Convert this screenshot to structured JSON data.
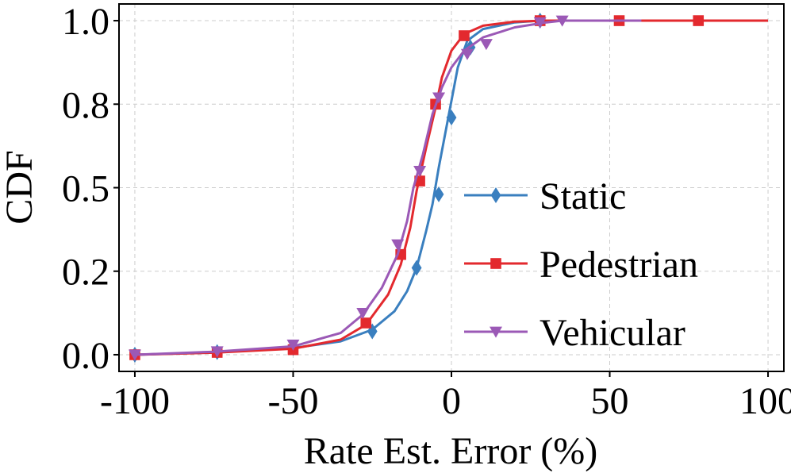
{
  "chart_data": {
    "type": "line",
    "title": "",
    "xlabel": "Rate Est. Error (%)",
    "ylabel": "CDF",
    "xlim": [
      -105,
      105
    ],
    "ylim": [
      -0.05,
      1.05
    ],
    "xticks": [
      -100,
      -50,
      0,
      50,
      100
    ],
    "xtick_labels": [
      "-100",
      "-50",
      "0",
      "50",
      "100"
    ],
    "yticks": [
      0.0,
      0.25,
      0.5,
      0.75,
      1.0
    ],
    "ytick_labels": [
      "0.0",
      "0.2",
      "0.5",
      "0.8",
      "1.0"
    ],
    "grid": true,
    "legend_position": "right",
    "series": [
      {
        "name": "Static",
        "color": "#3a7fbf",
        "marker": "diamond",
        "curve": {
          "x": [
            -100,
            -75,
            -50,
            -35,
            -25,
            -18,
            -14,
            -11,
            -8,
            -6,
            -4,
            -2,
            0,
            2,
            5,
            10,
            20,
            28,
            60
          ],
          "y": [
            0.0,
            0.007,
            0.02,
            0.04,
            0.075,
            0.13,
            0.19,
            0.26,
            0.37,
            0.45,
            0.56,
            0.66,
            0.76,
            0.86,
            0.94,
            0.975,
            0.995,
            1.0,
            1.0
          ]
        },
        "markers": {
          "x": [
            -100,
            -74,
            -50,
            -25,
            -11,
            -4,
            0,
            6,
            28
          ],
          "y": [
            0.0,
            0.008,
            0.02,
            0.07,
            0.26,
            0.48,
            0.71,
            0.92,
            1.0
          ]
        }
      },
      {
        "name": "Pedestrian",
        "color": "#e3292e",
        "marker": "square",
        "curve": {
          "x": [
            -100,
            -75,
            -50,
            -35,
            -27,
            -20,
            -16,
            -13,
            -11,
            -8,
            -5,
            -3,
            0,
            4,
            10,
            20,
            30,
            50,
            100
          ],
          "y": [
            0.0,
            0.006,
            0.018,
            0.045,
            0.09,
            0.18,
            0.27,
            0.38,
            0.49,
            0.62,
            0.74,
            0.83,
            0.91,
            0.96,
            0.985,
            0.997,
            1.0,
            1.0,
            1.0
          ]
        },
        "markers": {
          "x": [
            -100,
            -74,
            -50,
            -27,
            -16,
            -10,
            -5,
            4,
            28,
            53,
            78
          ],
          "y": [
            0.0,
            0.007,
            0.015,
            0.095,
            0.3,
            0.52,
            0.75,
            0.955,
            1.0,
            1.0,
            1.0
          ]
        }
      },
      {
        "name": "Vehicular",
        "color": "#9b59b6",
        "marker": "triangle-down",
        "curve": {
          "x": [
            -100,
            -75,
            -50,
            -35,
            -28,
            -22,
            -17,
            -14,
            -12,
            -9,
            -6,
            -3,
            0,
            4,
            10,
            20,
            30,
            35,
            60
          ],
          "y": [
            0.0,
            0.009,
            0.025,
            0.065,
            0.12,
            0.2,
            0.3,
            0.4,
            0.5,
            0.6,
            0.72,
            0.8,
            0.86,
            0.91,
            0.95,
            0.98,
            0.995,
            1.0,
            1.0
          ]
        },
        "markers": {
          "x": [
            -100,
            -74,
            -50,
            -28,
            -17,
            -10,
            -4,
            5,
            11,
            28,
            35
          ],
          "y": [
            0.0,
            0.01,
            0.03,
            0.125,
            0.33,
            0.55,
            0.77,
            0.9,
            0.93,
            0.995,
            1.0
          ]
        }
      }
    ]
  }
}
